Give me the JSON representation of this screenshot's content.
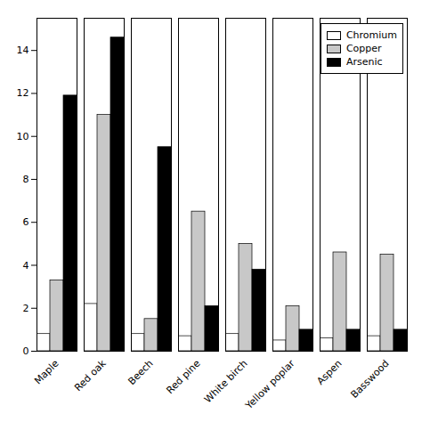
{
  "chart_data": {
    "type": "bar",
    "categories": [
      "Maple",
      "Red oak",
      "Beech",
      "Red pine",
      "White birch",
      "Yellow poplar",
      "Aspen",
      "Basswood"
    ],
    "series": [
      {
        "name": "Chromium",
        "color": "#ffffff",
        "values": [
          0.8,
          2.2,
          0.8,
          0.7,
          0.8,
          0.5,
          0.6,
          0.7
        ]
      },
      {
        "name": "Copper",
        "color": "#c8c8c8",
        "values": [
          3.3,
          11.0,
          1.5,
          6.5,
          5.0,
          2.1,
          4.6,
          4.5
        ]
      },
      {
        "name": "Arsenic",
        "color": "#000000",
        "values": [
          11.9,
          14.6,
          9.5,
          2.1,
          3.8,
          1.0,
          1.0,
          1.0
        ]
      }
    ],
    "ylim": [
      0,
      15.5
    ],
    "yticks": [
      0,
      2,
      4,
      6,
      8,
      10,
      12,
      14
    ],
    "legend": "upper right",
    "grid": false
  }
}
